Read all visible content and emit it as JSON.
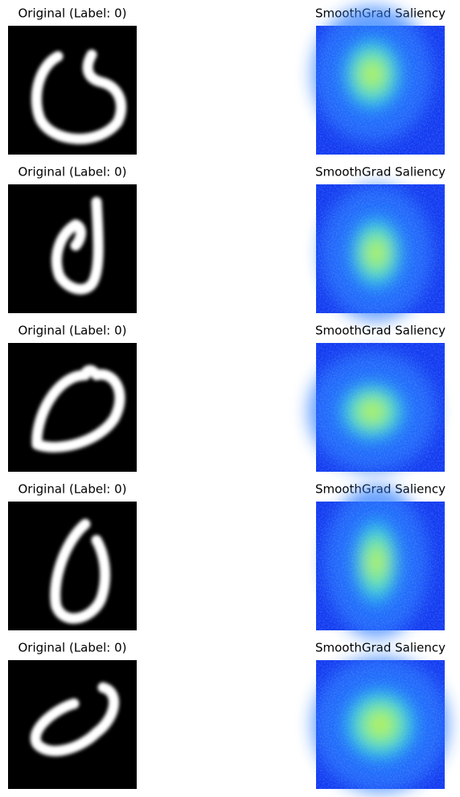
{
  "panels": [
    {
      "original_title": "Original (Label: 0)",
      "saliency_title": "SmoothGrad Saliency"
    },
    {
      "original_title": "Original (Label: 0)",
      "saliency_title": "SmoothGrad Saliency"
    },
    {
      "original_title": "Original (Label: 0)",
      "saliency_title": "SmoothGrad Saliency"
    },
    {
      "original_title": "Original (Label: 0)",
      "saliency_title": "SmoothGrad Saliency"
    },
    {
      "original_title": "Original (Label: 0)",
      "saliency_title": "SmoothGrad Saliency"
    }
  ]
}
